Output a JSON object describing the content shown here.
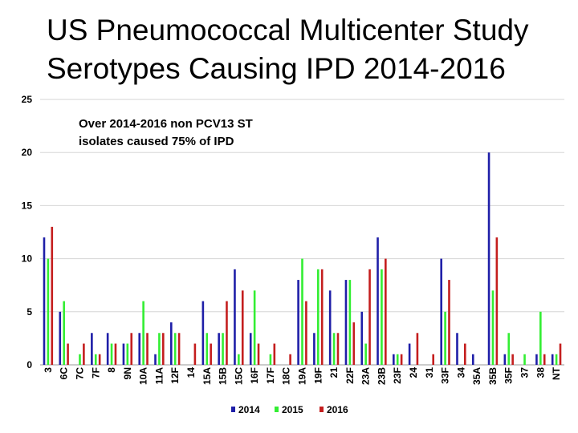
{
  "title_lines": [
    "US Pneumococcal Multicenter Study",
    "Serotypes Causing IPD 2014-2016"
  ],
  "chart_data": {
    "type": "bar",
    "title": "US Pneumococcal Multicenter Study Serotypes Causing IPD 2014-2016",
    "categories": [
      "3",
      "6C",
      "7C",
      "7F",
      "8",
      "9N",
      "10A",
      "11A",
      "12F",
      "14",
      "15A",
      "15B",
      "15C",
      "16F",
      "17F",
      "18C",
      "19A",
      "19F",
      "21",
      "22F",
      "23A",
      "23B",
      "23F",
      "24",
      "31",
      "33F",
      "34",
      "35A",
      "35B",
      "35F",
      "37",
      "38",
      "NT"
    ],
    "series": [
      {
        "name": "2014",
        "color": "#1f1fa8",
        "values": [
          12,
          5,
          0,
          3,
          3,
          2,
          3,
          1,
          4,
          0,
          6,
          3,
          9,
          3,
          0,
          0,
          8,
          3,
          7,
          8,
          5,
          12,
          1,
          2,
          0,
          10,
          3,
          1,
          20,
          1,
          0,
          1,
          1
        ]
      },
      {
        "name": "2015",
        "color": "#33ee33",
        "values": [
          10,
          6,
          1,
          1,
          2,
          2,
          6,
          3,
          3,
          0,
          3,
          3,
          1,
          7,
          1,
          0,
          10,
          9,
          3,
          8,
          2,
          9,
          1,
          0,
          0,
          5,
          0,
          0,
          7,
          3,
          1,
          5,
          1
        ]
      },
      {
        "name": "2016",
        "color": "#c41e1e",
        "values": [
          13,
          2,
          2,
          1,
          2,
          3,
          3,
          3,
          3,
          2,
          2,
          6,
          7,
          2,
          2,
          1,
          6,
          9,
          3,
          4,
          9,
          10,
          1,
          3,
          1,
          8,
          2,
          0,
          12,
          1,
          0,
          1,
          2
        ]
      }
    ],
    "yticks": [
      0,
      5,
      10,
      15,
      20,
      25
    ],
    "ylim": [
      0,
      25
    ],
    "grid": true,
    "legend_position": "bottom",
    "annotation_lines": [
      "Over 2014-2016 non PCV13 ST",
      "isolates caused 75% of IPD"
    ]
  }
}
